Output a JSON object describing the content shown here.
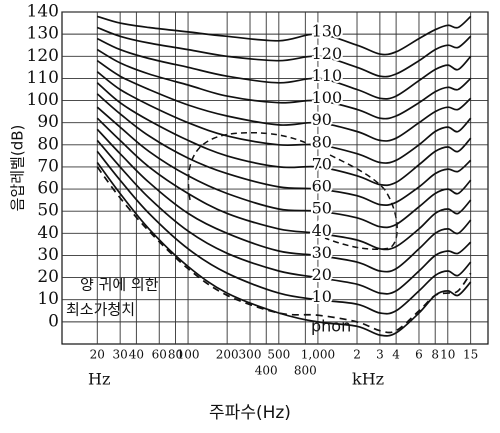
{
  "chart_data": {
    "type": "line",
    "y_label": "음압레벨(dB)",
    "x_label": "주파수(Hz)",
    "x_unit_left": "Hz",
    "x_unit_right": "kHz",
    "annotations": [
      "양 귀에 의한",
      "최소가청치",
      "phon"
    ],
    "log_x": true,
    "grid": true,
    "color": "#111111",
    "xlim": [
      10.7,
      20400
    ],
    "ylim": [
      -10,
      140
    ],
    "yticks": [
      0,
      10,
      20,
      30,
      40,
      50,
      60,
      70,
      80,
      90,
      100,
      110,
      120,
      130,
      140
    ],
    "xticks": [
      20,
      30,
      40,
      60,
      80,
      100,
      200,
      300,
      500,
      {
        "value": 1000,
        "label": "1,000"
      },
      {
        "value": 2000,
        "label": "2"
      },
      {
        "value": 3000,
        "label": "3"
      },
      {
        "value": 4000,
        "label": "4"
      },
      {
        "value": 6000,
        "label": "6"
      },
      {
        "value": 8000,
        "label": "8"
      },
      {
        "value": 10000,
        "label": "10"
      },
      {
        "value": 15000,
        "label": "15"
      }
    ],
    "xticks_row2": [
      400,
      800
    ],
    "x": [
      20,
      30,
      50,
      100,
      200,
      500,
      1000,
      2000,
      3000,
      4000,
      6000,
      8000,
      10000,
      12000,
      15000
    ],
    "series": [
      {
        "values": [
          72,
          58,
          42,
          25,
          13,
          4,
          0,
          -2,
          -6,
          -5,
          4,
          12,
          14,
          12,
          18
        ]
      },
      {
        "name": "10",
        "values": [
          77,
          64,
          49,
          33,
          22,
          13,
          10,
          8,
          4,
          5,
          14,
          21,
          23,
          21,
          27
        ]
      },
      {
        "name": "20",
        "values": [
          82,
          70,
          56,
          41,
          31,
          23,
          20,
          17,
          13,
          14,
          23,
          30,
          32,
          31,
          36
        ]
      },
      {
        "name": "30",
        "values": [
          87,
          76,
          63,
          49,
          40,
          32,
          30,
          27,
          23,
          24,
          33,
          40,
          42,
          40,
          46
        ]
      },
      {
        "name": "40",
        "values": [
          92,
          82,
          70,
          58,
          49,
          42,
          40,
          37,
          33,
          34,
          42,
          49,
          51,
          49,
          55
        ]
      },
      {
        "name": "50",
        "values": [
          97,
          88,
          77,
          66,
          58,
          51,
          50,
          47,
          43,
          44,
          52,
          58,
          60,
          58,
          64
        ]
      },
      {
        "name": "60",
        "values": [
          103,
          94,
          84,
          74,
          67,
          61,
          60,
          57,
          53,
          54,
          61,
          67,
          69,
          68,
          73
        ]
      },
      {
        "name": "70",
        "values": [
          108,
          99,
          91,
          82,
          75,
          70,
          70,
          66,
          62,
          63,
          71,
          77,
          79,
          77,
          83
        ]
      },
      {
        "name": "80",
        "values": [
          113,
          105,
          98,
          90,
          84,
          80,
          80,
          76,
          72,
          73,
          80,
          86,
          88,
          86,
          92
        ]
      },
      {
        "name": "90",
        "values": [
          118,
          111,
          105,
          98,
          93,
          89,
          90,
          86,
          82,
          83,
          90,
          95,
          97,
          96,
          101
        ]
      },
      {
        "name": "100",
        "values": [
          123,
          117,
          112,
          107,
          102,
          99,
          100,
          96,
          92,
          93,
          99,
          104,
          106,
          105,
          110
        ]
      },
      {
        "name": "110",
        "values": [
          128,
          123,
          119,
          115,
          111,
          108,
          110,
          105,
          101,
          102,
          109,
          114,
          116,
          114,
          120
        ]
      },
      {
        "name": "120",
        "values": [
          133,
          129,
          126,
          123,
          120,
          118,
          120,
          115,
          111,
          112,
          118,
          123,
          125,
          124,
          129
        ]
      },
      {
        "name": "130",
        "values": [
          138,
          135,
          133,
          131,
          129,
          127,
          130,
          125,
          121,
          122,
          128,
          132,
          134,
          133,
          138
        ]
      },
      {
        "values": [
          70,
          56,
          41,
          24,
          12,
          4,
          3,
          0,
          -4,
          -4,
          5,
          12,
          13,
          14,
          22
        ],
        "dash": true
      }
    ]
  }
}
